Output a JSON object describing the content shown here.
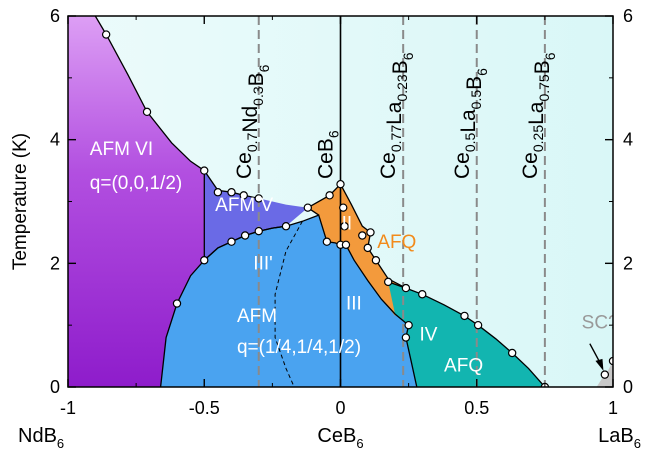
{
  "chart_data": {
    "type": "area",
    "title": "",
    "ylabel": "Temperature (K)",
    "xlim": [
      -1,
      1
    ],
    "ylim": [
      0,
      6
    ],
    "x_ticks": [
      {
        "value": -1,
        "label": "-1"
      },
      {
        "value": -0.5,
        "label": "-0.5"
      },
      {
        "value": 0,
        "label": "0"
      },
      {
        "value": 0.5,
        "label": "0.5"
      },
      {
        "value": 1,
        "label": "1"
      }
    ],
    "y_ticks": [
      {
        "value": 0,
        "label": "0"
      },
      {
        "value": 2,
        "label": "2"
      },
      {
        "value": 4,
        "label": "4"
      },
      {
        "value": 6,
        "label": "6"
      }
    ],
    "end_labels": [
      {
        "x": -1,
        "base": "NdB",
        "sub": "6"
      },
      {
        "x": 0,
        "base": "CeB",
        "sub": "6"
      },
      {
        "x": 1,
        "base": "LaB",
        "sub": "6"
      }
    ],
    "compositions": [
      {
        "x": -0.3,
        "parts": [
          [
            "Ce",
            ""
          ],
          [
            "",
            "0.7"
          ],
          [
            "Nd",
            ""
          ],
          [
            "",
            "0.3"
          ],
          [
            "B",
            ""
          ],
          [
            "",
            "6"
          ]
        ]
      },
      {
        "x": 0,
        "parts": [
          [
            "CeB",
            ""
          ],
          [
            "",
            "6"
          ]
        ]
      },
      {
        "x": 0.23,
        "parts": [
          [
            "Ce",
            ""
          ],
          [
            "",
            "0.77"
          ],
          [
            "La",
            ""
          ],
          [
            "",
            "0.23"
          ],
          [
            "B",
            ""
          ],
          [
            "",
            "6"
          ]
        ]
      },
      {
        "x": 0.5,
        "parts": [
          [
            "Ce",
            ""
          ],
          [
            "",
            "0.5"
          ],
          [
            "La",
            ""
          ],
          [
            "",
            "0.5"
          ],
          [
            "B",
            ""
          ],
          [
            "",
            "6"
          ]
        ]
      },
      {
        "x": 0.75,
        "parts": [
          [
            "Ce",
            ""
          ],
          [
            "",
            "0.25"
          ],
          [
            "La",
            ""
          ],
          [
            "",
            "0.75"
          ],
          [
            "B",
            ""
          ],
          [
            "",
            "6"
          ]
        ]
      }
    ],
    "phase_labels": [
      {
        "text": "AFM VI",
        "x": -0.92,
        "y": 3.75,
        "color": "#ffffff"
      },
      {
        "text": "q=(0,0,1/2)",
        "x": -0.92,
        "y": 3.2,
        "color": "#ffffff"
      },
      {
        "text": "AFM V",
        "x": -0.46,
        "y": 2.85,
        "color": "#ffffff"
      },
      {
        "text": "III'",
        "x": -0.32,
        "y": 1.9,
        "color": "#ffffff"
      },
      {
        "text": "II",
        "x": 0.004,
        "y": 2.55,
        "color": "#ffffff"
      },
      {
        "text": "AFQ",
        "x": 0.135,
        "y": 2.25,
        "color": "#f28a1a"
      },
      {
        "text": "III",
        "x": 0.02,
        "y": 1.25,
        "color": "#ffffff"
      },
      {
        "text": "AFM",
        "x": -0.38,
        "y": 1.05,
        "color": "#ffffff"
      },
      {
        "text": "q=(1/4,1/4,1/2)",
        "x": -0.38,
        "y": 0.55,
        "color": "#ffffff"
      },
      {
        "text": "IV",
        "x": 0.29,
        "y": 0.75,
        "color": "#ffffff"
      },
      {
        "text": "AFQ",
        "x": 0.38,
        "y": 0.25,
        "color": "#ffffff"
      },
      {
        "text": "SC?",
        "x": 0.885,
        "y": 0.95,
        "color": "#999999"
      }
    ],
    "boundary_points": [
      [
        -0.86,
        5.7
      ],
      [
        -0.71,
        4.45
      ],
      [
        -0.5,
        3.5
      ],
      [
        -0.45,
        3.15
      ],
      [
        -0.4,
        3.15
      ],
      [
        -0.355,
        3.1
      ],
      [
        -0.3,
        3.05
      ],
      [
        -0.12,
        2.9
      ],
      [
        -0.04,
        3.1
      ],
      [
        0.0,
        3.28
      ],
      [
        0.01,
        2.9
      ],
      [
        0.015,
        2.6
      ],
      [
        0.08,
        2.45
      ],
      [
        0.11,
        2.5
      ],
      [
        0.1,
        2.25
      ],
      [
        0.13,
        2.05
      ],
      [
        0.175,
        1.7
      ],
      [
        0.24,
        1.6
      ],
      [
        0.3,
        1.5
      ],
      [
        0.455,
        1.15
      ],
      [
        0.505,
        1.0
      ],
      [
        0.63,
        0.55
      ],
      [
        0.75,
        0.0
      ],
      [
        -0.5,
        2.05
      ],
      [
        -0.4,
        2.35
      ],
      [
        -0.35,
        2.45
      ],
      [
        -0.3,
        2.52
      ],
      [
        -0.2,
        2.6
      ],
      [
        -0.05,
        2.35
      ],
      [
        0.0,
        2.3
      ],
      [
        0.02,
        2.3
      ],
      [
        0.25,
        1.0
      ],
      [
        0.24,
        0.8
      ],
      [
        -0.6,
        1.35
      ],
      [
        0.97,
        0.2
      ],
      [
        1.0,
        0.42
      ]
    ],
    "regions": [
      {
        "name": "AFM VI",
        "color": "#a12fd6"
      },
      {
        "name": "AFM V",
        "color": "#6a6ae6"
      },
      {
        "name": "AFM",
        "color": "#4aa3f0"
      },
      {
        "name": "II (AFQ)",
        "color": "#f39a3c"
      },
      {
        "name": "IV (AFQ)",
        "color": "#12b5b0"
      },
      {
        "name": "SC?",
        "color": "#c8c8c8"
      }
    ],
    "grid": false
  }
}
